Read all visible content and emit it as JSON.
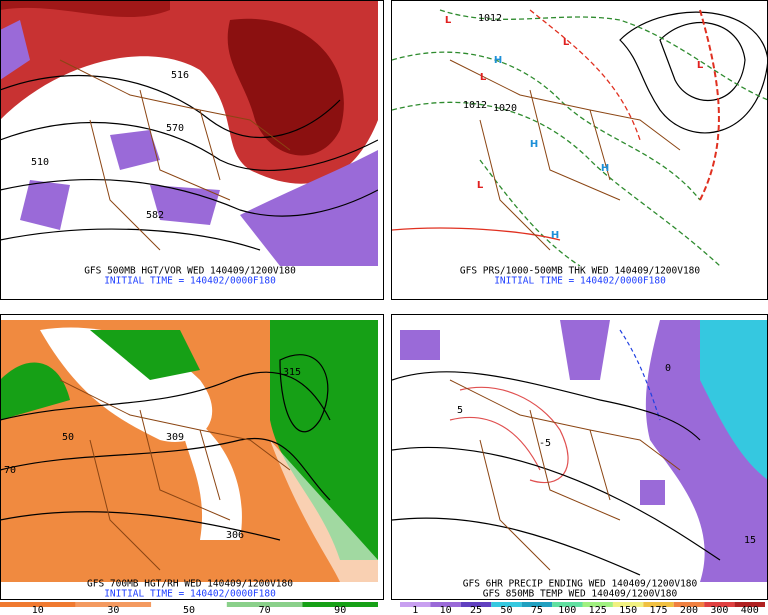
{
  "panels": [
    {
      "lines": [
        "GFS 500MB HGT/VOR WED 140409/1200V180",
        "INITIAL TIME = 140402/0000F180"
      ],
      "labels": [
        "570",
        "582",
        "510",
        "516"
      ]
    },
    {
      "lines": [
        "GFS PRS/1000-500MB THK WED 140409/1200V180",
        "INITIAL TIME = 140402/0000F180"
      ],
      "labels": [
        "L",
        "L",
        "L",
        "L",
        "L",
        "H",
        "H",
        "H",
        "H",
        "1012",
        "1020",
        "1012"
      ]
    },
    {
      "lines": [
        "GFS 700MB HGT/RH WED 140409/1200V180",
        "INITIAL TIME = 140402/0000F180"
      ],
      "labels": [
        "306",
        "315",
        "50",
        "70",
        "309"
      ]
    },
    {
      "lines": [
        "GFS 6HR PRECIP ENDING WED 140409/1200V180",
        "GFS 850MB TEMP WED 140409/1200V180"
      ],
      "labels": [
        "-5",
        "0",
        "5",
        "15"
      ]
    }
  ],
  "colorbars": [
    [
      "10",
      "30",
      "50",
      "70",
      "90"
    ],
    [
      "1",
      "10",
      "25",
      "50",
      "75",
      "100",
      "125",
      "150",
      "175",
      "200",
      "300",
      "400"
    ]
  ]
}
